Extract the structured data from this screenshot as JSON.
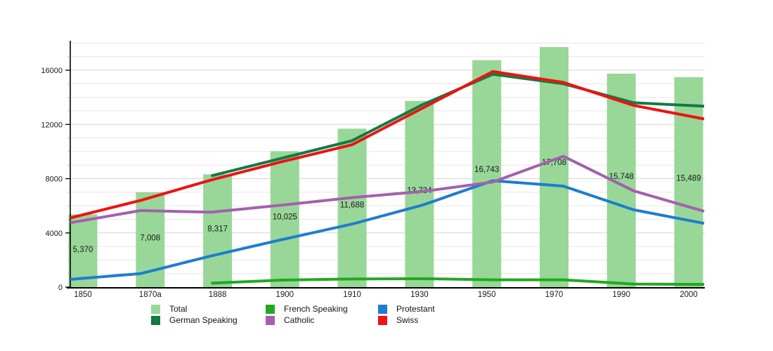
{
  "chart_data": {
    "type": "combo-bar-line",
    "title": "",
    "grid": true,
    "categories": [
      "1850",
      "1870a",
      "1888",
      "1900",
      "1910",
      "1930",
      "1950",
      "1970",
      "1990",
      "2000"
    ],
    "bars": {
      "name": "Total",
      "color": "#98d798",
      "values": [
        5370,
        7008,
        8317,
        10025,
        11688,
        13734,
        16743,
        17708,
        15748,
        15489
      ],
      "labels": [
        "5,370",
        "7,008",
        "8,317",
        "10,025",
        "11,688",
        "13,734",
        "16,743",
        "17,708",
        "15,748",
        "15,489"
      ]
    },
    "line_series": [
      {
        "name": "German Speaking",
        "color": "#107c42",
        "values": [
          null,
          null,
          8200,
          9500,
          10800,
          13450,
          15700,
          15000,
          13600,
          13350
        ]
      },
      {
        "name": "French Speaking",
        "color": "#1faa1f",
        "values": [
          null,
          null,
          290,
          520,
          600,
          620,
          540,
          540,
          230,
          200
        ]
      },
      {
        "name": "Protestant",
        "color": "#1e7dce",
        "values": [
          570,
          1000,
          2300,
          3500,
          4650,
          6050,
          7850,
          7450,
          5700,
          4700
        ]
      },
      {
        "name": "Catholic",
        "color": "#a460ae",
        "values": [
          4750,
          5650,
          5525,
          6050,
          6600,
          7050,
          7750,
          9650,
          7100,
          5600
        ]
      },
      {
        "name": "Swiss",
        "color": "#ee1212",
        "values": [
          5100,
          6400,
          7900,
          9250,
          10500,
          13200,
          15900,
          15100,
          13400,
          12400
        ]
      }
    ],
    "y_axis": {
      "tick_labels": [
        "0",
        "4000",
        "8000",
        "12000",
        "16000"
      ],
      "tick_values": [
        0,
        4000,
        8000,
        12000,
        16000
      ],
      "minor_step": 1000,
      "max": 18000,
      "min": 0
    },
    "legend": {
      "position": "bottom",
      "items": [
        {
          "label": "Total",
          "color": "#98d798"
        },
        {
          "label": "German Speaking",
          "color": "#107c42"
        },
        {
          "label": "French Speaking",
          "color": "#1faa1f"
        },
        {
          "label": "Catholic",
          "color": "#a460ae"
        },
        {
          "label": "Protestant",
          "color": "#1e7dce"
        },
        {
          "label": "Swiss",
          "color": "#ee1212"
        }
      ]
    }
  }
}
